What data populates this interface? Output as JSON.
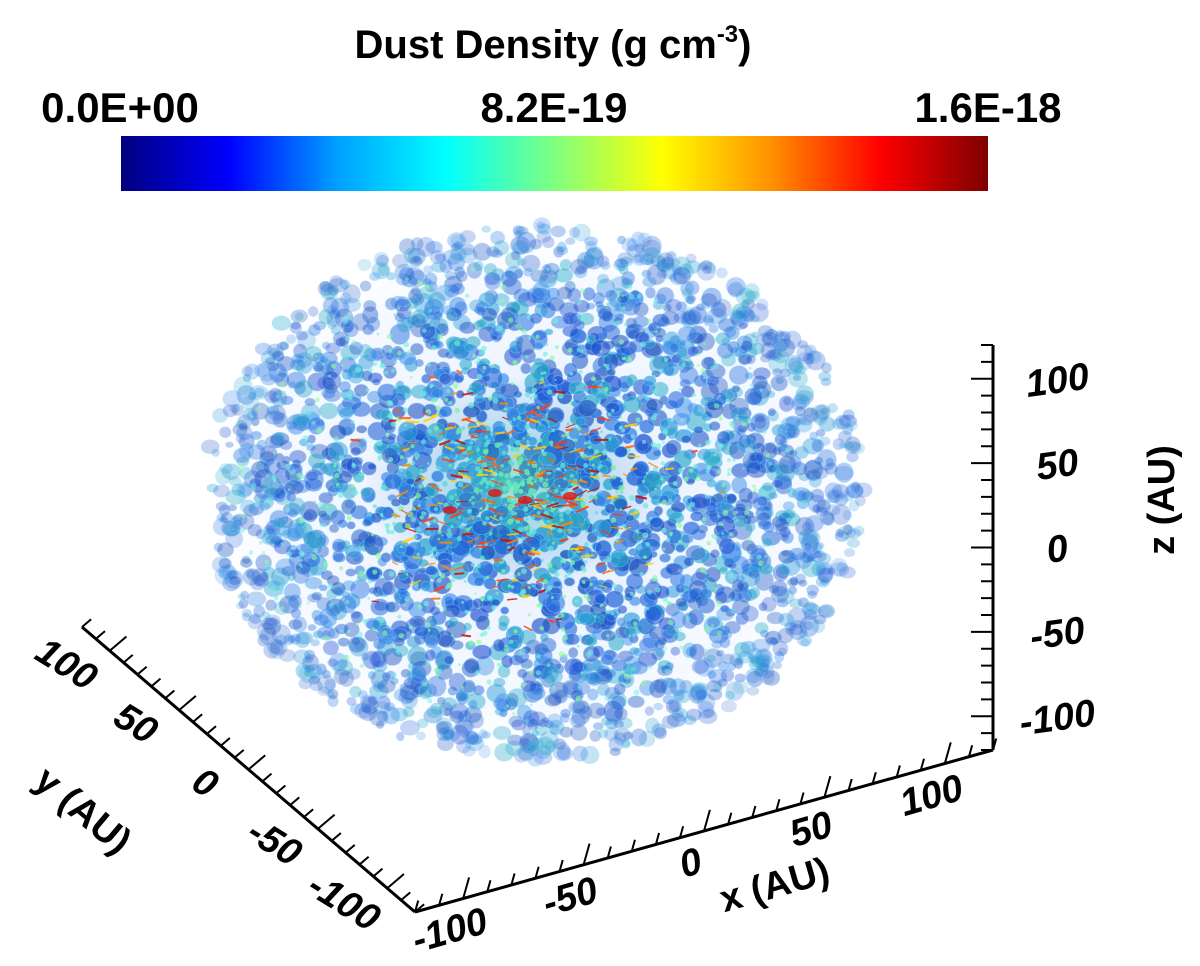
{
  "chart_data": {
    "type": "volume-rendering",
    "colorbar": {
      "title": "Dust Density (g cm",
      "title_superscript": "-3",
      "title_suffix": ")",
      "min_label": "0.0E+00",
      "mid_label": "8.2E-19",
      "max_label": "1.6E-18",
      "range": [
        0.0,
        1.6e-18
      ],
      "colormap": [
        "#00007f",
        "#0000ff",
        "#00a0ff",
        "#00ffff",
        "#7fff7f",
        "#ffff00",
        "#ff9000",
        "#ff0000",
        "#7f0000"
      ]
    },
    "axes": {
      "x": {
        "label": "x (AU)",
        "ticks": [
          -100,
          -50,
          0,
          50,
          100
        ],
        "tick_labels": [
          "-100",
          "-50",
          "0",
          "50",
          "100"
        ],
        "range": [
          -120,
          120
        ]
      },
      "y": {
        "label": "y (AU)",
        "ticks": [
          -100,
          -50,
          0,
          50,
          100
        ],
        "tick_labels": [
          "-100",
          "-50",
          "0",
          "50",
          "100"
        ],
        "range": [
          -120,
          120
        ]
      },
      "z": {
        "label": "z (AU)",
        "ticks": [
          -100,
          -50,
          0,
          50,
          100
        ],
        "tick_labels": [
          "-100",
          "-50",
          "0",
          "50",
          "100"
        ],
        "range": [
          -120,
          120
        ]
      }
    },
    "cloud": {
      "shape": "sphere",
      "radius_au": 100
    }
  }
}
